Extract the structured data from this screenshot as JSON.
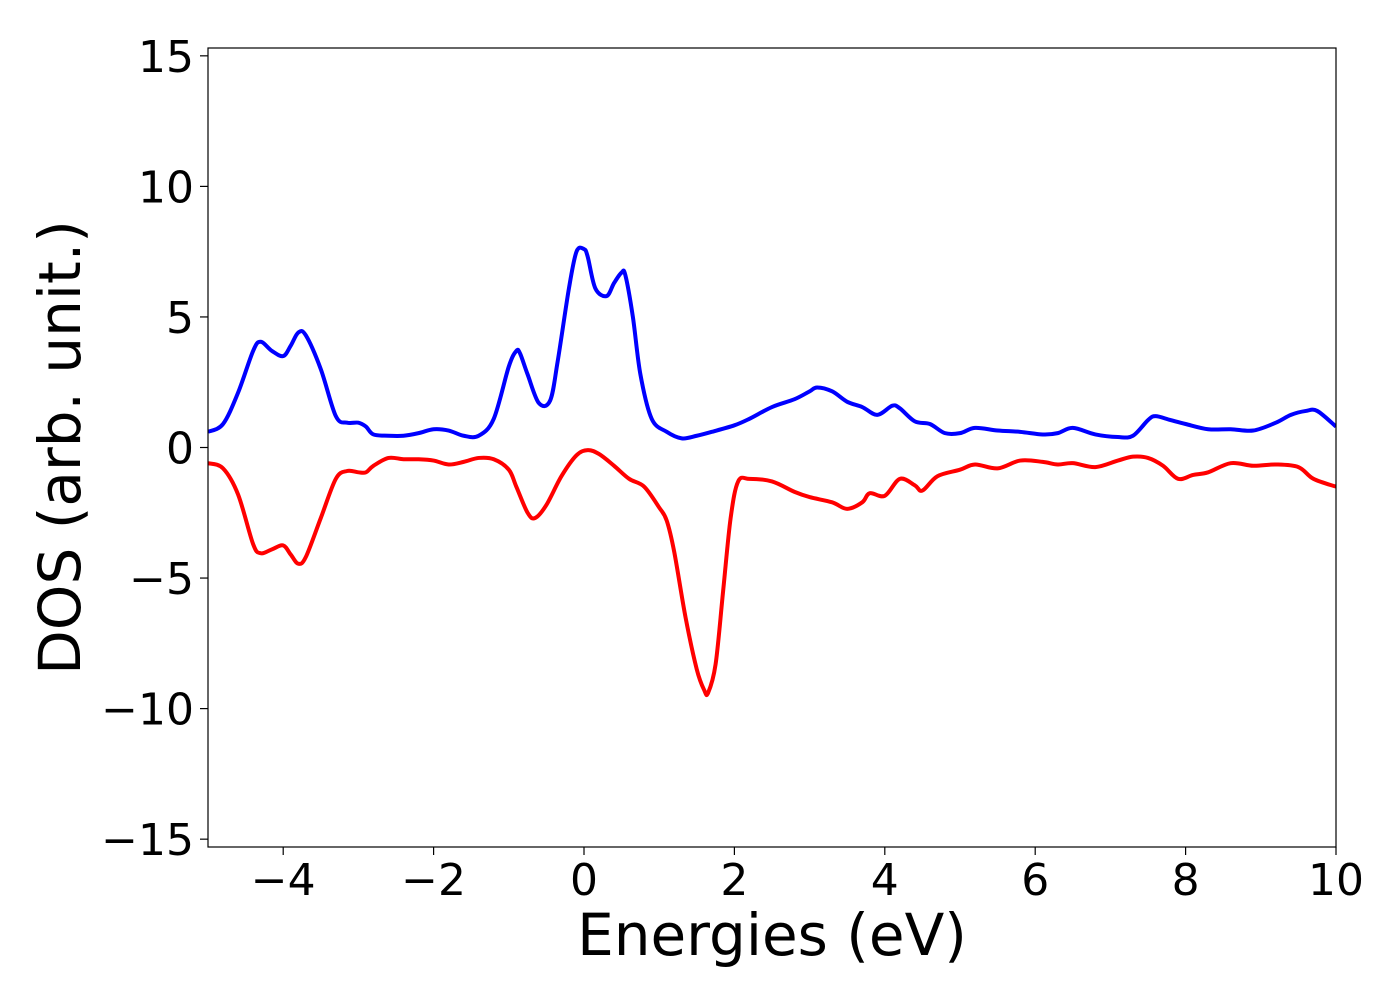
{
  "chart_data": {
    "type": "line",
    "title": "",
    "xlabel": "Energies (eV)",
    "ylabel": "DOS (arb. unit.)",
    "xlim": [
      -5,
      10
    ],
    "ylim": [
      -15.3,
      15.3
    ],
    "xticks": [
      -4,
      -2,
      0,
      2,
      4,
      6,
      8,
      10
    ],
    "xtick_labels": [
      "−4",
      "−2",
      "0",
      "2",
      "4",
      "6",
      "8",
      "10"
    ],
    "yticks": [
      -15,
      -10,
      -5,
      0,
      5,
      10,
      15
    ],
    "ytick_labels": [
      "−15",
      "−10",
      "−5",
      "0",
      "5",
      "10",
      "15"
    ],
    "grid": false,
    "legend": "none",
    "series": [
      {
        "color": "#0000ff",
        "x": [
          -5.0,
          -4.8,
          -4.6,
          -4.4,
          -4.3,
          -4.15,
          -4.0,
          -3.9,
          -3.8,
          -3.7,
          -3.5,
          -3.3,
          -3.15,
          -3.0,
          -2.9,
          -2.8,
          -2.6,
          -2.4,
          -2.2,
          -2.0,
          -1.8,
          -1.6,
          -1.4,
          -1.2,
          -1.0,
          -0.9,
          -0.85,
          -0.75,
          -0.6,
          -0.45,
          -0.35,
          -0.2,
          -0.1,
          0.0,
          0.05,
          0.15,
          0.3,
          0.4,
          0.5,
          0.55,
          0.65,
          0.75,
          0.9,
          1.1,
          1.3,
          1.5,
          1.7,
          2.0,
          2.2,
          2.5,
          2.8,
          3.0,
          3.1,
          3.3,
          3.5,
          3.7,
          3.9,
          4.1,
          4.2,
          4.4,
          4.6,
          4.8,
          5.0,
          5.2,
          5.5,
          5.8,
          6.1,
          6.3,
          6.5,
          6.8,
          7.1,
          7.3,
          7.5,
          7.6,
          7.8,
          8.0,
          8.3,
          8.6,
          8.9,
          9.2,
          9.4,
          9.6,
          9.75,
          10.0
        ],
        "y": [
          0.6,
          0.9,
          2.1,
          3.7,
          4.05,
          3.7,
          3.5,
          3.9,
          4.4,
          4.3,
          3.0,
          1.2,
          0.95,
          0.95,
          0.8,
          0.5,
          0.45,
          0.45,
          0.55,
          0.7,
          0.65,
          0.45,
          0.45,
          1.1,
          3.1,
          3.7,
          3.6,
          2.8,
          1.7,
          1.8,
          3.3,
          6.1,
          7.5,
          7.6,
          7.3,
          6.1,
          5.8,
          6.3,
          6.7,
          6.6,
          5.0,
          2.8,
          1.1,
          0.6,
          0.35,
          0.45,
          0.6,
          0.85,
          1.1,
          1.55,
          1.85,
          2.15,
          2.3,
          2.15,
          1.75,
          1.55,
          1.25,
          1.6,
          1.5,
          1.0,
          0.9,
          0.55,
          0.55,
          0.75,
          0.65,
          0.6,
          0.5,
          0.55,
          0.75,
          0.5,
          0.4,
          0.45,
          1.05,
          1.2,
          1.05,
          0.9,
          0.7,
          0.7,
          0.65,
          0.95,
          1.25,
          1.4,
          1.4,
          0.8
        ]
      },
      {
        "color": "#ff0000",
        "x": [
          -5.0,
          -4.8,
          -4.6,
          -4.4,
          -4.3,
          -4.15,
          -4.0,
          -3.9,
          -3.8,
          -3.7,
          -3.5,
          -3.3,
          -3.15,
          -3.0,
          -2.9,
          -2.8,
          -2.6,
          -2.4,
          -2.2,
          -2.0,
          -1.8,
          -1.6,
          -1.4,
          -1.2,
          -1.0,
          -0.9,
          -0.75,
          -0.65,
          -0.5,
          -0.3,
          -0.1,
          0.05,
          0.2,
          0.4,
          0.6,
          0.8,
          1.0,
          1.1,
          1.2,
          1.35,
          1.5,
          1.6,
          1.65,
          1.75,
          1.85,
          1.95,
          2.05,
          2.2,
          2.5,
          2.8,
          3.0,
          3.3,
          3.5,
          3.7,
          3.8,
          4.0,
          4.2,
          4.4,
          4.5,
          4.7,
          5.0,
          5.2,
          5.5,
          5.8,
          6.1,
          6.3,
          6.5,
          6.8,
          7.1,
          7.3,
          7.5,
          7.7,
          7.9,
          8.1,
          8.3,
          8.6,
          8.9,
          9.2,
          9.5,
          9.7,
          10.0
        ],
        "y": [
          -0.6,
          -0.8,
          -1.8,
          -3.7,
          -4.05,
          -3.9,
          -3.75,
          -4.1,
          -4.45,
          -4.2,
          -2.7,
          -1.2,
          -0.9,
          -0.95,
          -0.95,
          -0.7,
          -0.4,
          -0.45,
          -0.45,
          -0.5,
          -0.65,
          -0.55,
          -0.4,
          -0.45,
          -0.85,
          -1.5,
          -2.5,
          -2.7,
          -2.2,
          -1.1,
          -0.3,
          -0.1,
          -0.25,
          -0.7,
          -1.2,
          -1.5,
          -2.3,
          -2.8,
          -4.0,
          -6.5,
          -8.5,
          -9.3,
          -9.4,
          -8.3,
          -5.5,
          -2.7,
          -1.3,
          -1.2,
          -1.3,
          -1.7,
          -1.9,
          -2.1,
          -2.35,
          -2.1,
          -1.75,
          -1.85,
          -1.2,
          -1.45,
          -1.65,
          -1.1,
          -0.85,
          -0.65,
          -0.8,
          -0.5,
          -0.55,
          -0.65,
          -0.6,
          -0.75,
          -0.5,
          -0.35,
          -0.4,
          -0.7,
          -1.2,
          -1.05,
          -0.95,
          -0.6,
          -0.7,
          -0.65,
          -0.75,
          -1.2,
          -1.5
        ]
      }
    ]
  }
}
